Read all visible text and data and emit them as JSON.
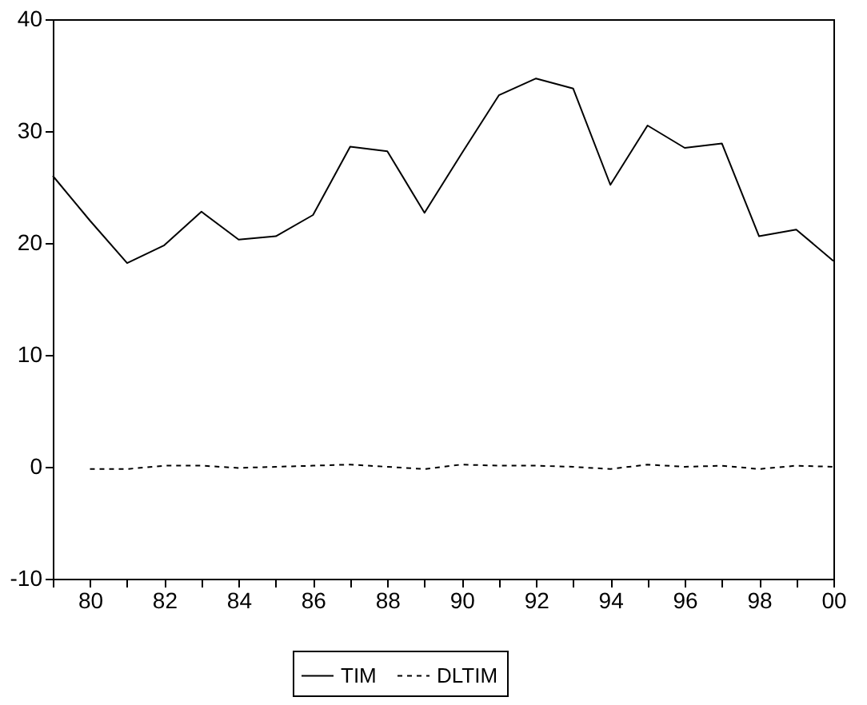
{
  "chart_data": {
    "type": "line",
    "x": [
      1979,
      1980,
      1981,
      1982,
      1983,
      1984,
      1985,
      1986,
      1987,
      1988,
      1989,
      1990,
      1991,
      1992,
      1993,
      1994,
      1995,
      1996,
      1997,
      1998,
      1999,
      2000
    ],
    "series": [
      {
        "name": "TIM",
        "color": "#000000",
        "line_style": "solid",
        "values": [
          26,
          22,
          18.2,
          19.8,
          22.8,
          20.3,
          20.6,
          22.5,
          28.6,
          28.2,
          22.7,
          28,
          33.2,
          34.7,
          33.8,
          25.2,
          30.5,
          28.5,
          28.9,
          20.6,
          21.2,
          18.4
        ]
      },
      {
        "name": "DLTIM",
        "color": "#000000",
        "line_style": "dashed",
        "values": [
          null,
          -0.2,
          -0.2,
          0.1,
          0.1,
          -0.1,
          0,
          0.1,
          0.2,
          0,
          -0.2,
          0.2,
          0.1,
          0.1,
          0,
          -0.2,
          0.2,
          0,
          0.1,
          -0.2,
          0.1,
          0
        ]
      }
    ],
    "xlim": [
      1979,
      2000
    ],
    "xticks": [
      {
        "value": 1979,
        "label": null
      },
      {
        "value": 1980,
        "label": "80"
      },
      {
        "value": 1981,
        "label": null
      },
      {
        "value": 1982,
        "label": "82"
      },
      {
        "value": 1983,
        "label": null
      },
      {
        "value": 1984,
        "label": "84"
      },
      {
        "value": 1985,
        "label": null
      },
      {
        "value": 1986,
        "label": "86"
      },
      {
        "value": 1987,
        "label": null
      },
      {
        "value": 1988,
        "label": "88"
      },
      {
        "value": 1989,
        "label": null
      },
      {
        "value": 1990,
        "label": "90"
      },
      {
        "value": 1991,
        "label": null
      },
      {
        "value": 1992,
        "label": "92"
      },
      {
        "value": 1993,
        "label": null
      },
      {
        "value": 1994,
        "label": "94"
      },
      {
        "value": 1995,
        "label": null
      },
      {
        "value": 1996,
        "label": "96"
      },
      {
        "value": 1997,
        "label": null
      },
      {
        "value": 1998,
        "label": "98"
      },
      {
        "value": 1999,
        "label": null
      },
      {
        "value": 2000,
        "label": "00"
      }
    ],
    "ylim": [
      -10,
      40
    ],
    "yticks": [
      -10,
      0,
      10,
      20,
      30,
      40
    ],
    "grid": false,
    "legend": "bottom",
    "marker": "none"
  }
}
